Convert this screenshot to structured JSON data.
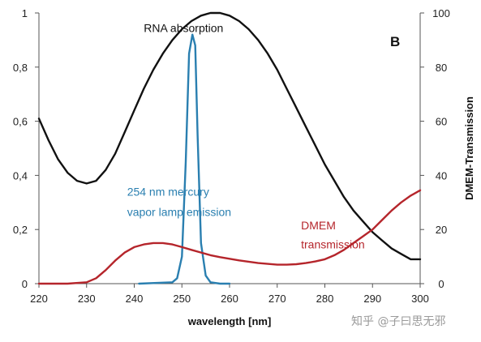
{
  "chart_data": {
    "type": "line",
    "panel_letter": "B",
    "xlabel": "wavelength [nm]",
    "ylabel_right": "DMEM-Transmission",
    "xlim": [
      220,
      300
    ],
    "ylim_left": [
      0,
      1
    ],
    "ylim_right": [
      0,
      100
    ],
    "x_ticks": [
      220,
      230,
      240,
      250,
      260,
      270,
      280,
      290,
      300
    ],
    "y_left_ticks": [
      {
        "value": 0,
        "label": "0"
      },
      {
        "value": 0.2,
        "label": "0,2"
      },
      {
        "value": 0.4,
        "label": "0,4"
      },
      {
        "value": 0.6,
        "label": "0,6"
      },
      {
        "value": 0.8,
        "label": "0,8"
      },
      {
        "value": 1,
        "label": "1"
      }
    ],
    "y_right_ticks": [
      {
        "value": 0,
        "label": "0"
      },
      {
        "value": 20,
        "label": "20"
      },
      {
        "value": 40,
        "label": "40"
      },
      {
        "value": 60,
        "label": "60"
      },
      {
        "value": 80,
        "label": "80"
      },
      {
        "value": 100,
        "label": "100"
      }
    ],
    "grid": false,
    "series": [
      {
        "name": "RNA absorption",
        "color": "#111111",
        "axis": "left",
        "points": [
          [
            220,
            0.61
          ],
          [
            222,
            0.53
          ],
          [
            224,
            0.46
          ],
          [
            226,
            0.41
          ],
          [
            228,
            0.38
          ],
          [
            230,
            0.37
          ],
          [
            232,
            0.38
          ],
          [
            234,
            0.42
          ],
          [
            236,
            0.48
          ],
          [
            238,
            0.56
          ],
          [
            240,
            0.64
          ],
          [
            242,
            0.72
          ],
          [
            244,
            0.79
          ],
          [
            246,
            0.85
          ],
          [
            248,
            0.9
          ],
          [
            250,
            0.94
          ],
          [
            252,
            0.97
          ],
          [
            254,
            0.99
          ],
          [
            256,
            1.0
          ],
          [
            258,
            1.0
          ],
          [
            260,
            0.99
          ],
          [
            262,
            0.97
          ],
          [
            264,
            0.94
          ],
          [
            266,
            0.9
          ],
          [
            268,
            0.85
          ],
          [
            270,
            0.79
          ],
          [
            272,
            0.72
          ],
          [
            274,
            0.65
          ],
          [
            276,
            0.58
          ],
          [
            278,
            0.51
          ],
          [
            280,
            0.44
          ],
          [
            282,
            0.38
          ],
          [
            284,
            0.32
          ],
          [
            286,
            0.27
          ],
          [
            288,
            0.23
          ],
          [
            290,
            0.19
          ],
          [
            292,
            0.16
          ],
          [
            294,
            0.13
          ],
          [
            296,
            0.11
          ],
          [
            298,
            0.09
          ],
          [
            300,
            0.09
          ]
        ]
      },
      {
        "name": "254 nm mercury vapor lamp emission",
        "color": "#2a7fb0",
        "axis": "left",
        "points": [
          [
            241,
            0
          ],
          [
            248,
            0.005
          ],
          [
            249,
            0.02
          ],
          [
            250,
            0.1
          ],
          [
            250.8,
            0.45
          ],
          [
            251.5,
            0.85
          ],
          [
            252.2,
            0.92
          ],
          [
            252.8,
            0.88
          ],
          [
            253.3,
            0.55
          ],
          [
            254,
            0.15
          ],
          [
            255,
            0.03
          ],
          [
            256,
            0.005
          ],
          [
            258,
            0
          ],
          [
            260,
            0
          ]
        ]
      },
      {
        "name": "DMEM transmission",
        "color": "#b5252b",
        "axis": "right",
        "points": [
          [
            220,
            0
          ],
          [
            226,
            0
          ],
          [
            230,
            0.5
          ],
          [
            232,
            2
          ],
          [
            234,
            5
          ],
          [
            236,
            8.5
          ],
          [
            238,
            11.5
          ],
          [
            240,
            13.5
          ],
          [
            242,
            14.5
          ],
          [
            244,
            15
          ],
          [
            246,
            15
          ],
          [
            248,
            14.5
          ],
          [
            250,
            13.5
          ],
          [
            252,
            12.5
          ],
          [
            254,
            11.5
          ],
          [
            256,
            10.5
          ],
          [
            258,
            9.8
          ],
          [
            260,
            9.2
          ],
          [
            262,
            8.6
          ],
          [
            264,
            8.1
          ],
          [
            266,
            7.6
          ],
          [
            268,
            7.3
          ],
          [
            270,
            7.0
          ],
          [
            272,
            7.0
          ],
          [
            274,
            7.2
          ],
          [
            276,
            7.6
          ],
          [
            278,
            8.2
          ],
          [
            280,
            9.0
          ],
          [
            282,
            10.5
          ],
          [
            284,
            12.5
          ],
          [
            286,
            15
          ],
          [
            288,
            17.5
          ],
          [
            290,
            20
          ],
          [
            292,
            23.5
          ],
          [
            294,
            27
          ],
          [
            296,
            30
          ],
          [
            298,
            32.5
          ],
          [
            300,
            34.5
          ]
        ]
      }
    ],
    "annotations": [
      {
        "text": "RNA absorption",
        "x": 242,
        "y": 0.93,
        "axis": "left",
        "color": "#111111"
      },
      {
        "text": "254 nm mercury",
        "x": 238.5,
        "y": 0.325,
        "axis": "left",
        "color": "#2a7fb0"
      },
      {
        "text": "vapor lamp emission",
        "x": 238.5,
        "y": 0.25,
        "axis": "left",
        "color": "#2a7fb0"
      },
      {
        "text": "DMEM",
        "x": 275,
        "y": 0.2,
        "axis": "left",
        "color": "#b5252b"
      },
      {
        "text": "transmission",
        "x": 275,
        "y": 0.13,
        "axis": "left",
        "color": "#b5252b"
      }
    ]
  },
  "watermark": "知乎 @子曰思无邪"
}
